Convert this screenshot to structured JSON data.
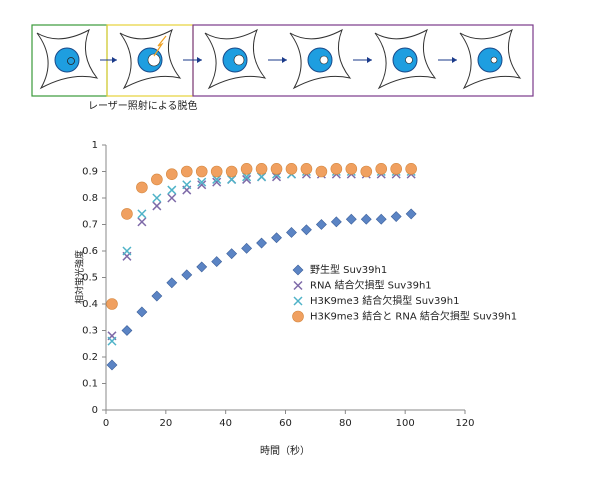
{
  "diagram": {
    "caption": "レーザー照射による脱色"
  },
  "chart_data": {
    "type": "scatter",
    "x_label": "時間（秒）",
    "y_label": "相対蛍光強度",
    "x": [
      2,
      7,
      12,
      17,
      22,
      27,
      32,
      37,
      42,
      47,
      52,
      57,
      62,
      67,
      72,
      77,
      82,
      87,
      92,
      97,
      102
    ],
    "series": [
      {
        "name": "野生型 Suv39h1",
        "color": "#5b84c4",
        "marker": "diamond",
        "values": [
          0.17,
          0.3,
          0.37,
          0.43,
          0.48,
          0.51,
          0.54,
          0.56,
          0.59,
          0.61,
          0.63,
          0.65,
          0.67,
          0.68,
          0.7,
          0.71,
          0.72,
          0.72,
          0.72,
          0.73,
          0.74
        ]
      },
      {
        "name": "RNA 結合欠損型 Suv39h1",
        "color": "#7e6aa8",
        "marker": "x",
        "values": [
          0.28,
          0.58,
          0.71,
          0.77,
          0.8,
          0.83,
          0.85,
          0.86,
          0.87,
          0.87,
          0.88,
          0.88,
          0.89,
          0.89,
          0.89,
          0.89,
          0.89,
          0.89,
          0.89,
          0.89,
          0.89
        ]
      },
      {
        "name": "H3K9me3 結合欠損型 Suv39h1",
        "color": "#4fb3c8",
        "marker": "x",
        "values": [
          0.26,
          0.6,
          0.74,
          0.8,
          0.83,
          0.85,
          0.86,
          0.87,
          0.87,
          0.88,
          0.88,
          0.89,
          0.89,
          0.9,
          0.9,
          0.9,
          0.9,
          0.9,
          0.9,
          0.9,
          0.9
        ]
      },
      {
        "name": "H3K9me3 結合と RNA 結合欠損型 Suv39h1",
        "color": "#f0a060",
        "marker": "circle",
        "values": [
          0.4,
          0.74,
          0.84,
          0.87,
          0.89,
          0.9,
          0.9,
          0.9,
          0.9,
          0.91,
          0.91,
          0.91,
          0.91,
          0.91,
          0.9,
          0.91,
          0.91,
          0.9,
          0.91,
          0.91,
          0.91
        ]
      }
    ],
    "xlim": [
      0,
      120
    ],
    "xticks": [
      0,
      20,
      40,
      60,
      80,
      100,
      120
    ],
    "ylim": [
      0,
      1
    ],
    "yticks": [
      0,
      0.1,
      0.2,
      0.3,
      0.4,
      0.5,
      0.6,
      0.7,
      0.8,
      0.9,
      1
    ]
  }
}
